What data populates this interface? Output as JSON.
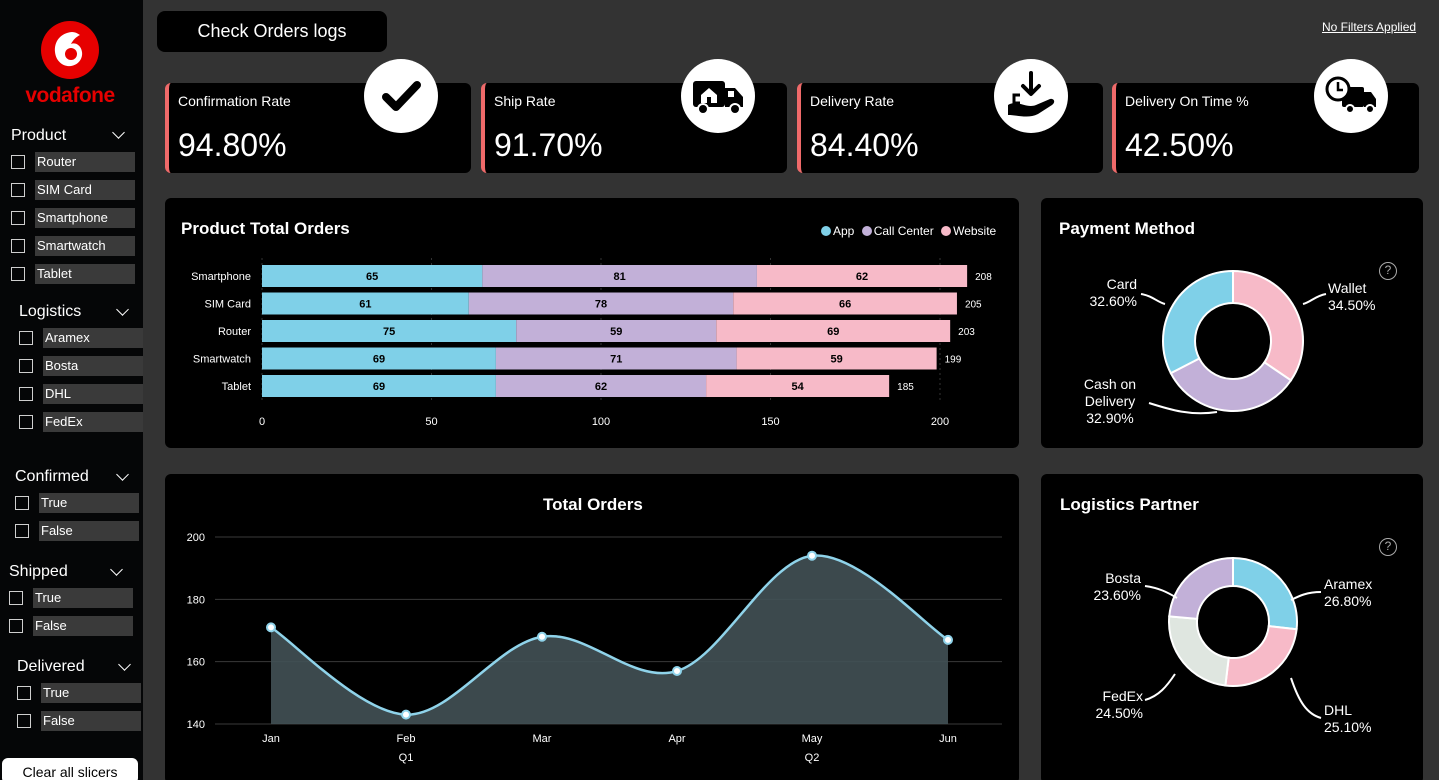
{
  "brand": {
    "name": "vodafone",
    "color": "#e60000"
  },
  "sidebar": {
    "slicers": [
      {
        "title": "Product",
        "options": [
          "Router",
          "SIM Card",
          "Smartphone",
          "Smartwatch",
          "Tablet"
        ]
      },
      {
        "title": "Logistics",
        "options": [
          "Aramex",
          "Bosta",
          "DHL",
          "FedEx"
        ]
      },
      {
        "title": "Confirmed",
        "options": [
          "True",
          "False"
        ]
      },
      {
        "title": "Shipped",
        "options": [
          "True",
          "False"
        ]
      },
      {
        "title": "Delivered",
        "options": [
          "True",
          "False"
        ]
      }
    ],
    "clear_label": "Clear all slicers"
  },
  "header": {
    "button_label": "Check Orders logs",
    "filters_label": "No Filters Applied"
  },
  "kpis": [
    {
      "title": "Confirmation Rate",
      "value": "94.80%",
      "icon": "checkmark-icon"
    },
    {
      "title": "Ship Rate",
      "value": "91.70%",
      "icon": "delivery-truck-icon"
    },
    {
      "title": "Delivery Rate",
      "value": "84.40%",
      "icon": "hand-receive-icon"
    },
    {
      "title": "Delivery On Time %",
      "value": "42.50%",
      "icon": "clock-truck-icon"
    }
  ],
  "colors": {
    "app": "#7fd0e8",
    "call_center": "#c2b0d8",
    "website": "#f7bac8",
    "fedex": "#dfe6e0",
    "accent": "#ef6a6a"
  },
  "chart_data": [
    {
      "type": "bar",
      "orientation": "horizontal",
      "stacked": true,
      "title": "Product Total Orders",
      "categories": [
        "Smartphone",
        "SIM Card",
        "Router",
        "Smartwatch",
        "Tablet"
      ],
      "series": [
        {
          "name": "App",
          "values": [
            65,
            61,
            75,
            69,
            69
          ]
        },
        {
          "name": "Call Center",
          "values": [
            81,
            78,
            59,
            71,
            62
          ]
        },
        {
          "name": "Website",
          "values": [
            62,
            66,
            69,
            59,
            54
          ]
        }
      ],
      "totals": [
        208,
        205,
        203,
        199,
        185
      ],
      "xlim": [
        0,
        200
      ],
      "xticks": [
        0,
        50,
        100,
        150,
        200
      ],
      "legend_position": "top-right"
    },
    {
      "type": "pie",
      "donut": true,
      "title": "Payment Method",
      "labels": [
        "Wallet",
        "Cash on Delivery",
        "Card"
      ],
      "values": [
        34.5,
        32.9,
        32.6
      ],
      "value_labels": [
        "34.50%",
        "32.90%",
        "32.60%"
      ]
    },
    {
      "type": "area",
      "title": "Total Orders",
      "x": [
        "Jan",
        "Feb",
        "Mar",
        "Apr",
        "May",
        "Jun"
      ],
      "quarters": [
        "Q1",
        "Q2"
      ],
      "values": [
        171,
        143,
        168,
        157,
        194,
        167
      ],
      "ylim": [
        140,
        200
      ],
      "yticks": [
        140,
        160,
        180,
        200
      ],
      "grid": true
    },
    {
      "type": "pie",
      "donut": true,
      "title": "Logistics Partner",
      "labels": [
        "Aramex",
        "DHL",
        "FedEx",
        "Bosta"
      ],
      "values": [
        26.8,
        25.1,
        24.5,
        23.6
      ],
      "value_labels": [
        "26.80%",
        "25.10%",
        "24.50%",
        "23.60%"
      ]
    }
  ],
  "help_glyph": "?"
}
